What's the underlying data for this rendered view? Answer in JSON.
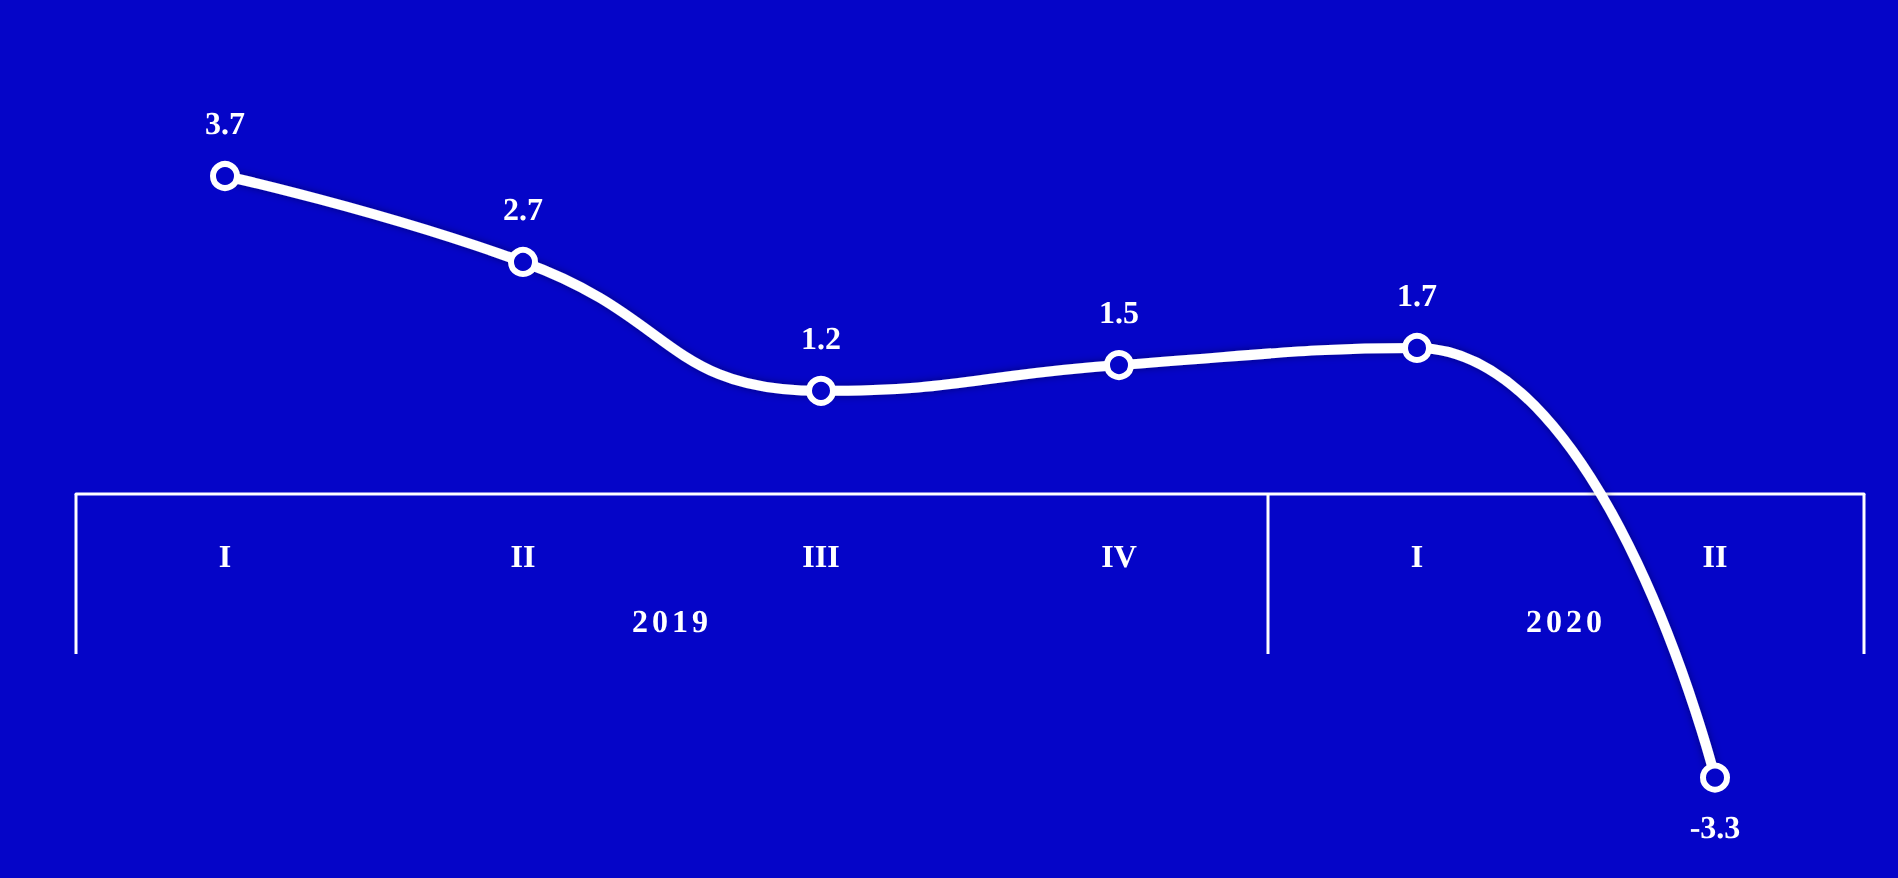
{
  "chart_data": {
    "type": "line",
    "categories": [
      "I",
      "II",
      "III",
      "IV",
      "I",
      "II"
    ],
    "series": [
      {
        "color": "#ffffff",
        "values": [
          3.7,
          2.7,
          1.2,
          1.5,
          1.7,
          -3.3
        ]
      }
    ],
    "data_labels": true,
    "marker": "circle",
    "line_style": "solid",
    "grid": false,
    "annotations": [
      "2019",
      "2020"
    ]
  }
}
